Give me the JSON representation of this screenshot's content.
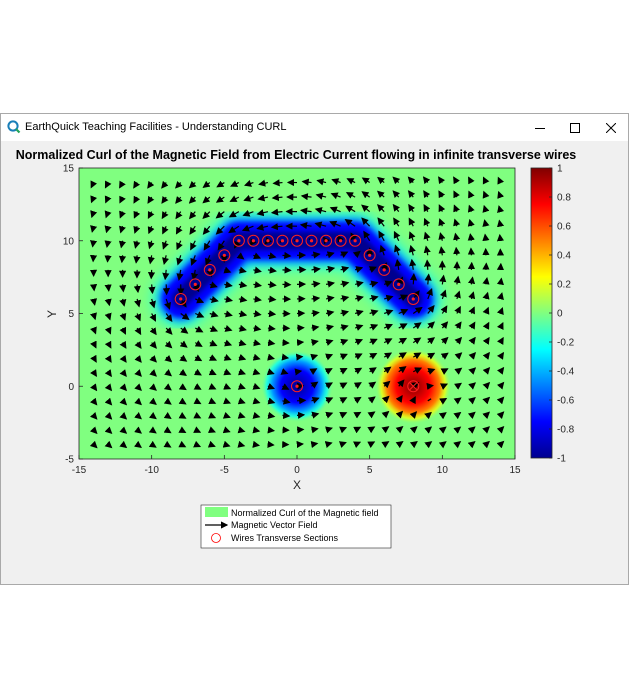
{
  "window": {
    "title": "EarthQuick Teaching Facilities - Understanding CURL",
    "icons": {
      "app": "app-logo-icon",
      "minimize": "minimize-icon",
      "maximize": "maximize-icon",
      "close": "close-icon"
    }
  },
  "chart_data": {
    "type": "heatmap",
    "title": "Normalized Curl of the Magnetic Field from Electric Current flowing in infinite transverse wires",
    "xlabel": "X",
    "ylabel": "Y",
    "xlim": [
      -15,
      15
    ],
    "ylim": [
      -5,
      15
    ],
    "xticks": [
      "-15",
      "-10",
      "-5",
      "0",
      "5",
      "10",
      "15"
    ],
    "yticks": [
      "-5",
      "0",
      "5",
      "10",
      "15"
    ],
    "colorbar": {
      "range": [
        -1,
        1
      ],
      "ticks": [
        "-1",
        "-0.8",
        "-0.6",
        "-0.4",
        "-0.2",
        "0",
        "0.2",
        "0.4",
        "0.6",
        "0.8",
        "1"
      ],
      "colormap": "jet"
    },
    "background_value": 0,
    "legend": {
      "placement": "below",
      "entries": [
        "Normalized Curl of the Magnetic field",
        "Magnetic Vector Field",
        "Wires Transverse Sections"
      ]
    },
    "wires": {
      "positive_current": [
        {
          "x": -8,
          "y": 6
        },
        {
          "x": -7,
          "y": 7
        },
        {
          "x": -6,
          "y": 8
        },
        {
          "x": -5,
          "y": 9
        },
        {
          "x": -4,
          "y": 10
        },
        {
          "x": -3,
          "y": 10
        },
        {
          "x": -2,
          "y": 10
        },
        {
          "x": -1,
          "y": 10
        },
        {
          "x": 0,
          "y": 10
        },
        {
          "x": 1,
          "y": 10
        },
        {
          "x": 2,
          "y": 10
        },
        {
          "x": 3,
          "y": 10
        },
        {
          "x": 4,
          "y": 10
        },
        {
          "x": 5,
          "y": 9
        },
        {
          "x": 6,
          "y": 8
        },
        {
          "x": 7,
          "y": 7
        },
        {
          "x": 8,
          "y": 6
        },
        {
          "x": 0,
          "y": 0
        }
      ],
      "negative_current": [
        {
          "x": 8,
          "y": 0
        }
      ]
    }
  }
}
